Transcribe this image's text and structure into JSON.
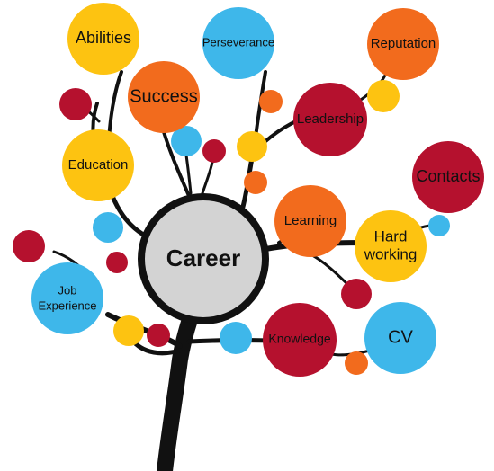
{
  "center": {
    "label": "Career"
  },
  "nodes": {
    "abilities": {
      "label": "Abilities"
    },
    "success": {
      "label": "Success"
    },
    "perseverance": {
      "label": "Perseverance"
    },
    "reputation": {
      "label": "Reputation"
    },
    "leadership": {
      "label": "Leadership"
    },
    "education": {
      "label": "Education"
    },
    "contacts": {
      "label": "Contacts"
    },
    "learning": {
      "label": "Learning"
    },
    "hard_working": {
      "line1": "Hard",
      "line2": "working"
    },
    "job_experience": {
      "line1": "Job",
      "line2": "Experience"
    },
    "knowledge": {
      "label": "Knowledge"
    },
    "cv": {
      "label": "CV"
    }
  },
  "colors": {
    "yellow": "#FDC311",
    "orange": "#F26B1D",
    "crimson": "#B5112E",
    "sky_blue": "#3EB7EA",
    "center_fill": "#D3D3D3",
    "trunk": "#111111"
  }
}
